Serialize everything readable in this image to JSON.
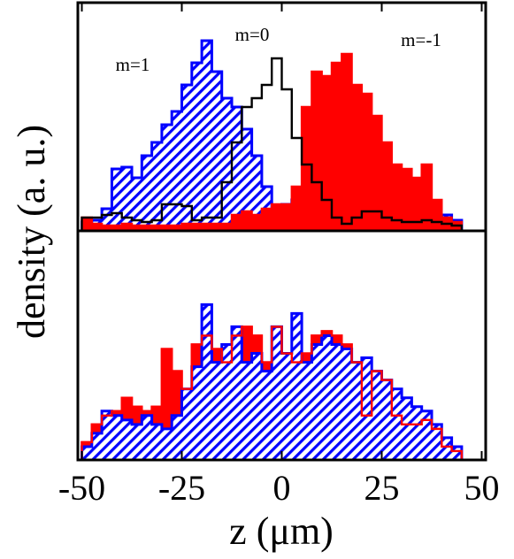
{
  "chart_data": [
    {
      "type": "histogram",
      "ylabel": "density (a. u.)",
      "annotations": [
        "m=1",
        "m=0",
        "m=-1"
      ],
      "bins": [
        -50,
        -47.5,
        -45,
        -42.5,
        -40,
        -37.5,
        -35,
        -32.5,
        -30,
        -27.5,
        -25,
        -22.5,
        -20,
        -17.5,
        -15,
        -12.5,
        -10,
        -7.5,
        -5,
        -2.5,
        0,
        2.5,
        5,
        7.5,
        10,
        12.5,
        15,
        17.5,
        20,
        22.5,
        25,
        27.5,
        30,
        32.5,
        35,
        37.5,
        40,
        42.5,
        45
      ],
      "xlim": [
        -51,
        51
      ],
      "ylim": [
        0,
        258
      ],
      "series": [
        {
          "color": "#0000ff",
          "hatch": true,
          "filled": true,
          "values": [
            10,
            12,
            25,
            70,
            72,
            60,
            85,
            100,
            120,
            135,
            165,
            190,
            215,
            180,
            150,
            140,
            115,
            85,
            50,
            25,
            30,
            35,
            20,
            15,
            10,
            12,
            8,
            10,
            12,
            15,
            12,
            10,
            18,
            22,
            20,
            15,
            18,
            12
          ]
        },
        {
          "color": "#ff0000",
          "hatch": false,
          "filled": true,
          "values": [
            15,
            8,
            6,
            6,
            8,
            6,
            6,
            6,
            6,
            6,
            8,
            8,
            8,
            8,
            8,
            18,
            22,
            18,
            25,
            30,
            30,
            50,
            140,
            180,
            175,
            190,
            200,
            165,
            155,
            130,
            100,
            75,
            70,
            60,
            75,
            35,
            15,
            10
          ]
        },
        {
          "color": "#000000",
          "hatch": false,
          "filled": false,
          "values": [
            15,
            15,
            18,
            20,
            15,
            12,
            10,
            12,
            30,
            30,
            28,
            12,
            15,
            15,
            55,
            100,
            140,
            150,
            165,
            195,
            160,
            105,
            75,
            55,
            35,
            15,
            8,
            15,
            22,
            22,
            15,
            12,
            10,
            10,
            12,
            10,
            8,
            6
          ]
        }
      ]
    },
    {
      "type": "histogram",
      "xlabel": "z (μm)",
      "bins": [
        -50,
        -47.5,
        -45,
        -42.5,
        -40,
        -37.5,
        -35,
        -32.5,
        -30,
        -27.5,
        -25,
        -22.5,
        -20,
        -17.5,
        -15,
        -12.5,
        -10,
        -7.5,
        -5,
        -2.5,
        0,
        2.5,
        5,
        7.5,
        10,
        12.5,
        15,
        17.5,
        20,
        22.5,
        25,
        27.5,
        30,
        32.5,
        35,
        37.5,
        40,
        42.5,
        45
      ],
      "xlim": [
        -51,
        51
      ],
      "ylim": [
        0,
        258
      ],
      "xticks": [
        -50,
        -25,
        0,
        25,
        50
      ],
      "series": [
        {
          "color": "#ff0000",
          "hatch": false,
          "filled": true,
          "values": [
            20,
            40,
            50,
            55,
            70,
            60,
            55,
            60,
            125,
            100,
            80,
            130,
            140,
            125,
            110,
            140,
            150,
            140,
            110,
            150,
            120,
            110,
            120,
            140,
            145,
            140,
            130,
            110,
            50,
            100,
            90,
            50,
            40,
            40,
            45,
            35,
            15,
            10
          ]
        },
        {
          "color": "#0000ff",
          "hatch": true,
          "filled": true,
          "values": [
            15,
            30,
            55,
            50,
            45,
            40,
            50,
            40,
            35,
            50,
            80,
            105,
            175,
            110,
            130,
            150,
            110,
            120,
            100,
            150,
            120,
            165,
            110,
            130,
            140,
            130,
            125,
            110,
            115,
            100,
            90,
            80,
            70,
            60,
            55,
            40,
            25,
            15
          ]
        },
        {
          "color": "#ff0000",
          "hatch": false,
          "filled": false,
          "values": [
            20,
            40,
            50,
            55,
            70,
            60,
            55,
            60,
            125,
            100,
            80,
            130,
            140,
            125,
            110,
            140,
            150,
            140,
            110,
            150,
            120,
            110,
            120,
            140,
            145,
            140,
            130,
            110,
            50,
            100,
            90,
            50,
            40,
            40,
            45,
            35,
            15,
            10
          ]
        }
      ]
    }
  ]
}
